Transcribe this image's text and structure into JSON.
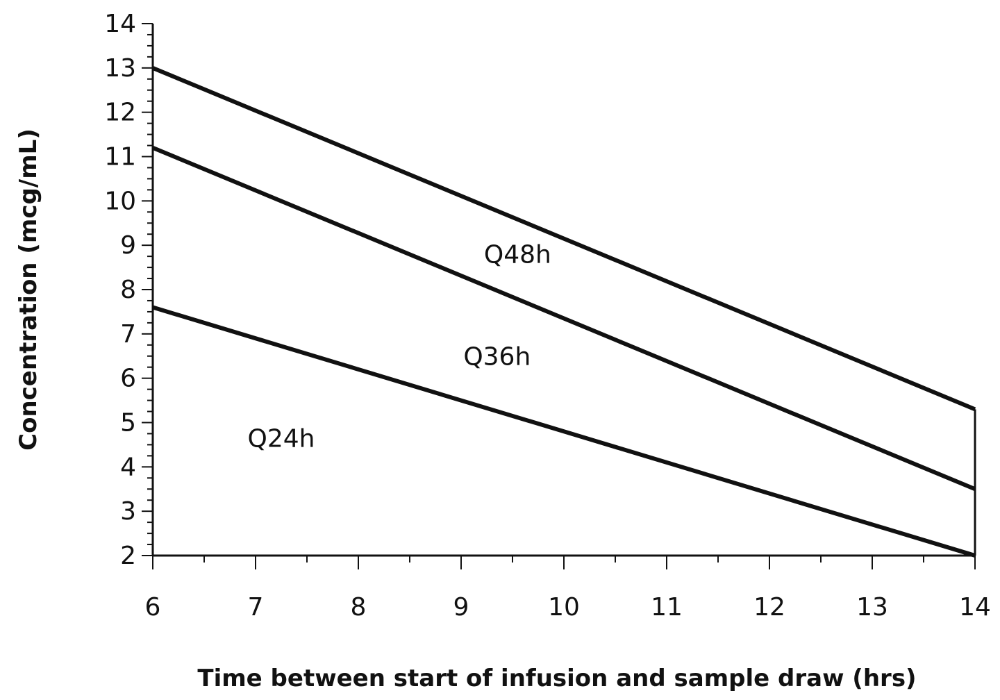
{
  "chart_data": {
    "type": "line",
    "title": "",
    "xlabel": "Time between start of infusion and sample draw (hrs)",
    "ylabel": "Concentration (mcg/mL)",
    "xlim": [
      6,
      14
    ],
    "ylim": [
      2,
      14
    ],
    "x_ticks": [
      6,
      7,
      8,
      9,
      10,
      11,
      12,
      13,
      14
    ],
    "y_ticks": [
      2,
      3,
      4,
      5,
      6,
      7,
      8,
      9,
      10,
      11,
      12,
      13,
      14
    ],
    "x_minor_step": 0.5,
    "y_minor_step": 0.25,
    "grid": false,
    "series": [
      {
        "x": [
          6,
          14
        ],
        "y": [
          13.0,
          5.3
        ]
      },
      {
        "x": [
          6,
          14
        ],
        "y": [
          11.2,
          3.5
        ]
      },
      {
        "x": [
          6,
          14
        ],
        "y": [
          7.6,
          2.0
        ]
      }
    ],
    "annotations": [
      {
        "text": "Q48h",
        "x": 9.55,
        "y": 8.6
      },
      {
        "text": "Q36h",
        "x": 9.35,
        "y": 6.3
      },
      {
        "text": "Q24h",
        "x": 7.25,
        "y": 4.45
      }
    ]
  }
}
